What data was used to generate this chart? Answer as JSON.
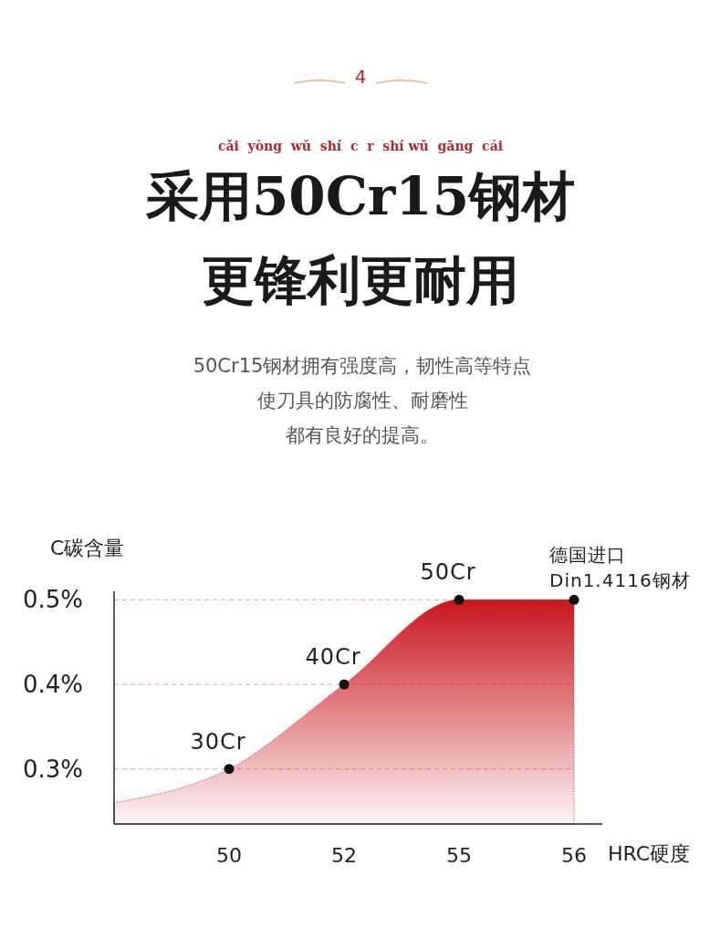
{
  "chart_data": {
    "type": "area",
    "title": "采用50Cr15钢材",
    "subtitle": "更锋利更耐用",
    "annotations": [
      "4",
      "cǎi  yòng  wǔ  shí  c  r  shí wǔ  gāng  cái",
      "50Cr15钢材拥有强度高，韧性高等特点",
      "使刀具的防腐性、耐磨性",
      "都有良好的提高。",
      {
        "text": "30Cr",
        "x": "50",
        "y": 0.3
      },
      {
        "text": "40Cr",
        "x": "52",
        "y": 0.4
      },
      {
        "text": "50Cr",
        "x": "55",
        "y": 0.5
      },
      {
        "text": "德国进口\nDin1.4116钢材",
        "x": "56",
        "y": 0.5
      }
    ],
    "xlabel": "HRC硬度",
    "ylabel": "C碳含量",
    "categories": [
      null,
      "50",
      "52",
      "55",
      "56"
    ],
    "series": [
      {
        "color": "#c8161d",
        "values": [
          0.26,
          0.3,
          0.4,
          0.5,
          0.5
        ]
      },
      {
        "type": "scatter",
        "color": "#111111",
        "marker": "circle",
        "values": [
          null,
          0.3,
          0.4,
          0.5,
          0.5
        ]
      }
    ],
    "ylim": [
      0.235,
      0.51
    ],
    "yticks": [
      {
        "value": 0.3,
        "label": "0.3%"
      },
      {
        "value": 0.4,
        "label": "0.4%"
      },
      {
        "value": 0.5,
        "label": "0.5%"
      }
    ],
    "grid": "y"
  }
}
